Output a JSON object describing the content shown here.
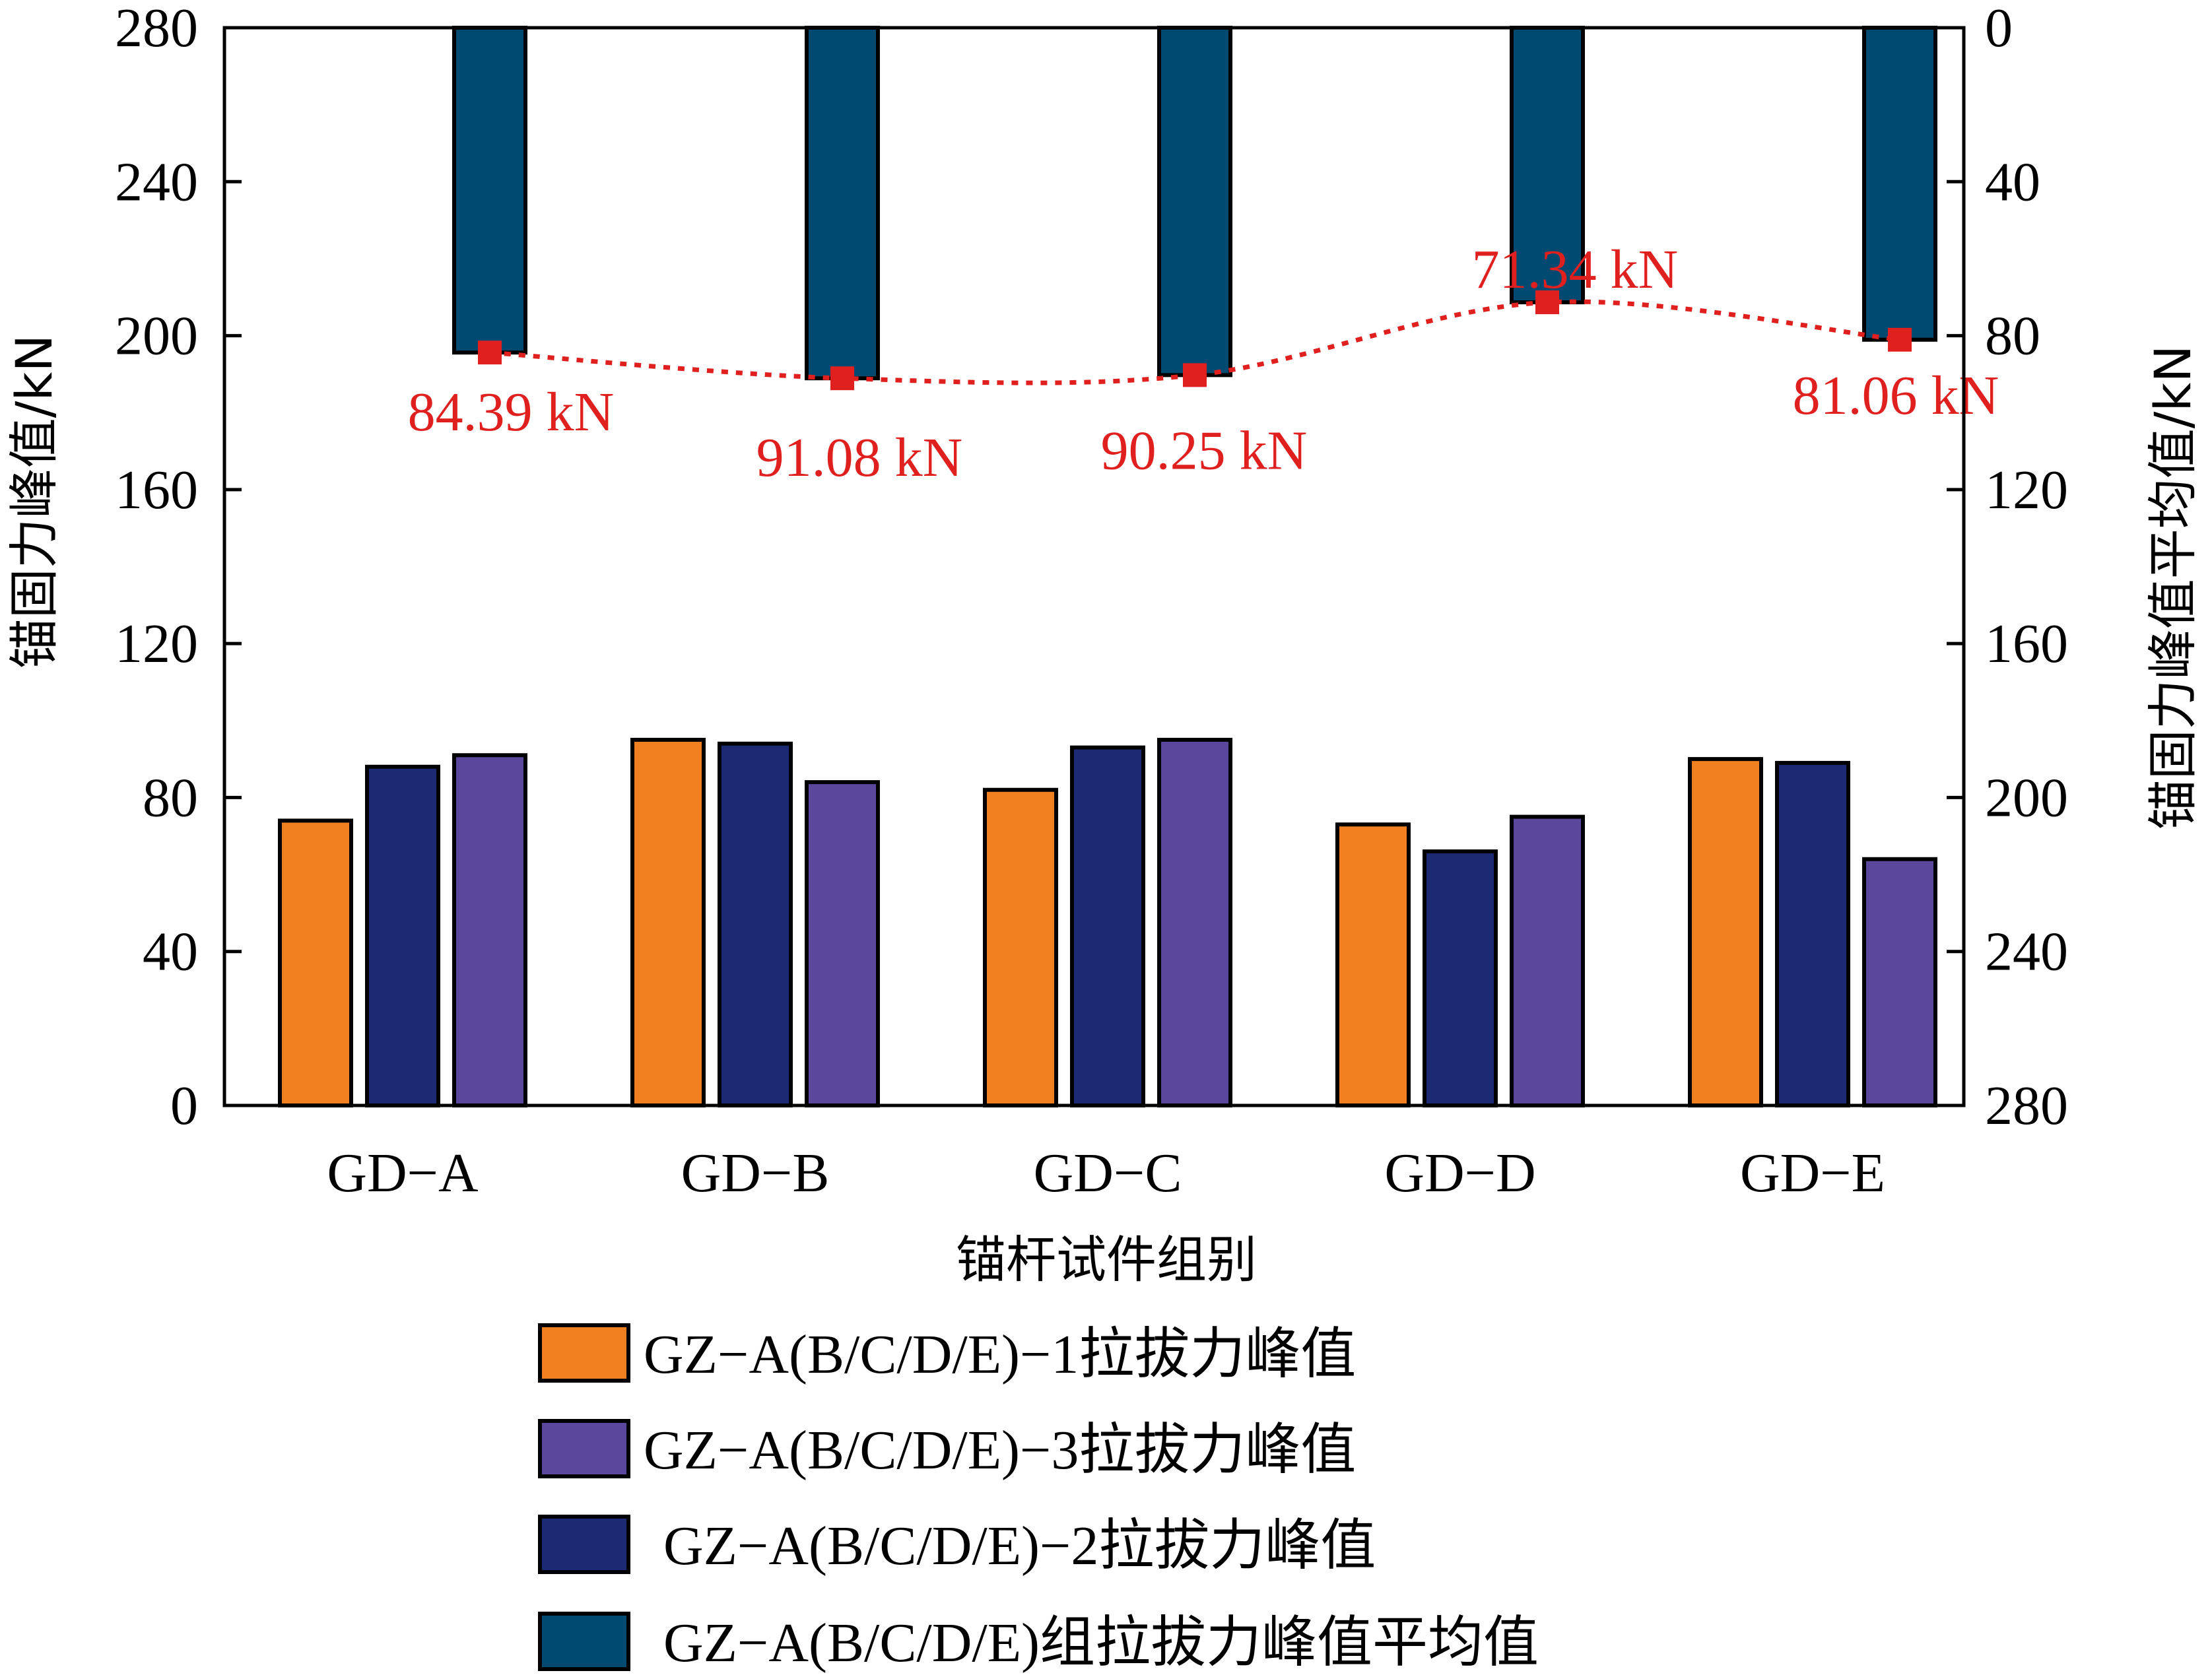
{
  "chart_data": {
    "type": "bar",
    "categories": [
      "GD−A",
      "GD−B",
      "GD−C",
      "GD−D",
      "GD−E"
    ],
    "xlabel": "锚杆试件组别",
    "ylabel_left": "锚固力峰值/kN",
    "ylabel_right": "锚固力峰值平均值/kN",
    "ylim_left": [
      0,
      280
    ],
    "ylim_right": [
      0,
      280
    ],
    "right_axis_inverted": true,
    "yticks_left": [
      0,
      40,
      80,
      120,
      160,
      200,
      240,
      280
    ],
    "yticks_right": [
      0,
      40,
      80,
      120,
      160,
      200,
      240,
      280
    ],
    "series": [
      {
        "name": "GZ−A(B/C/D/E)−1拉拔力峰值",
        "axis": "left",
        "color": "#F08020",
        "values": [
          74,
          95,
          82,
          73,
          90
        ]
      },
      {
        "name": "GZ−A(B/C/D/E)−2拉拔力峰值",
        "axis": "left",
        "color": "#1C2A74",
        "values": [
          88,
          94,
          93,
          66,
          89
        ]
      },
      {
        "name": "GZ−A(B/C/D/E)−3拉拔力峰值",
        "axis": "left",
        "color": "#5B479B",
        "values": [
          91,
          84,
          95,
          75,
          64
        ]
      },
      {
        "name": "GZ−A(B/C/D/E)组拉拔力峰值平均值",
        "axis": "right",
        "color": "#004A72",
        "values": [
          84.39,
          91.08,
          90.25,
          71.34,
          81.06
        ]
      }
    ],
    "average_markers": {
      "color": "#E0201E",
      "style": "dotted",
      "labels": [
        "84.39 kN",
        "91.08 kN",
        "90.25 kN",
        "71.34 kN",
        "81.06 kN"
      ]
    },
    "legend_position": "bottom",
    "legend_order": [
      0,
      2,
      1,
      3
    ],
    "grid": false
  }
}
